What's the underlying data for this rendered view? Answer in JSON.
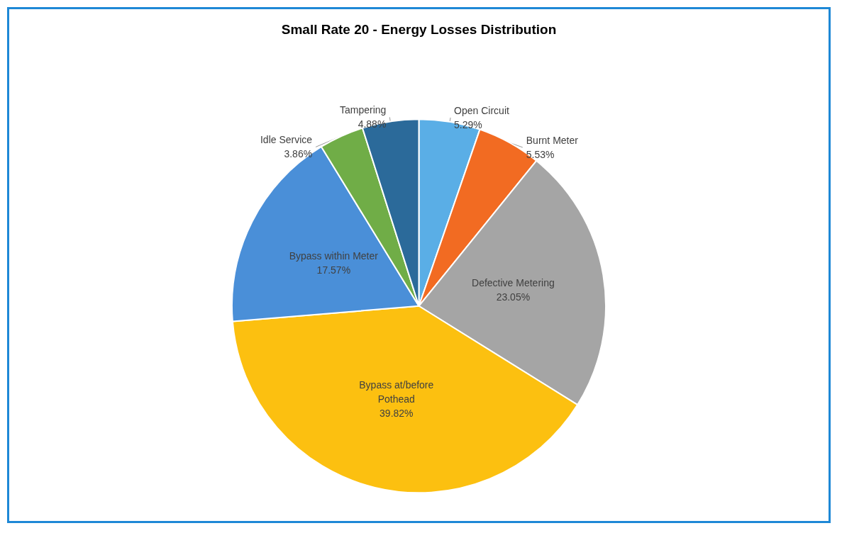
{
  "chart_data": {
    "type": "pie",
    "title": "Small Rate 20 - Energy Losses Distribution",
    "categories": [
      "Open Circuit",
      "Burnt Meter",
      "Defective Metering",
      "Bypass at/before\nPothead",
      "Bypass within Meter",
      "Idle Service",
      "Tampering"
    ],
    "values": [
      5.29,
      5.53,
      23.05,
      39.82,
      17.57,
      3.86,
      4.88
    ],
    "value_labels": [
      "5.29%",
      "5.53%",
      "23.05%",
      "39.82%",
      "17.57%",
      "3.86%",
      "4.88%"
    ],
    "colors": [
      "#5aaee6",
      "#f26b22",
      "#a5a5a5",
      "#fcc010",
      "#4a8fd8",
      "#70ad47",
      "#2b6a9a"
    ],
    "legend": false
  }
}
